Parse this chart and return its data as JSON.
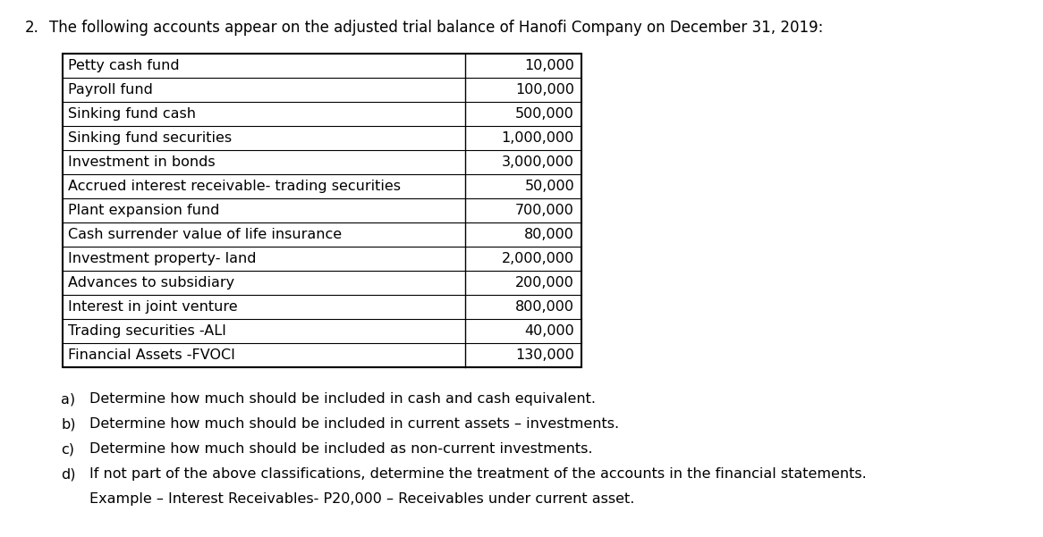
{
  "title_num": "2.",
  "title_text": "  The following accounts appear on the adjusted trial balance of Hanofi Company on December 31, 2019:",
  "table_rows": [
    [
      "Petty cash fund",
      "10,000"
    ],
    [
      "Payroll fund",
      "100,000"
    ],
    [
      "Sinking fund cash",
      "500,000"
    ],
    [
      "Sinking fund securities",
      "1,000,000"
    ],
    [
      "Investment in bonds",
      "3,000,000"
    ],
    [
      "Accrued interest receivable- trading securities",
      "50,000"
    ],
    [
      "Plant expansion fund",
      "700,000"
    ],
    [
      "Cash surrender value of life insurance",
      "80,000"
    ],
    [
      "Investment property- land",
      "2,000,000"
    ],
    [
      "Advances to subsidiary",
      "200,000"
    ],
    [
      "Interest in joint venture",
      "800,000"
    ],
    [
      "Trading securities -ALI",
      "40,000"
    ],
    [
      "Financial Assets -FVOCI",
      "130,000"
    ]
  ],
  "questions": [
    [
      "a)",
      "Determine how much should be included in cash and cash equivalent."
    ],
    [
      "b)",
      "Determine how much should be included in current assets – investments."
    ],
    [
      "c)",
      "Determine how much should be included as non-current investments."
    ],
    [
      "d)",
      "If not part of the above classifications, determine the treatment of the accounts in the financial statements."
    ],
    [
      "",
      "Example – Interest Receivables- P20,000 – Receivables under current asset."
    ]
  ],
  "background_color": "#ffffff",
  "text_color": "#000000",
  "font_size": 11.5,
  "title_font_size": 12
}
